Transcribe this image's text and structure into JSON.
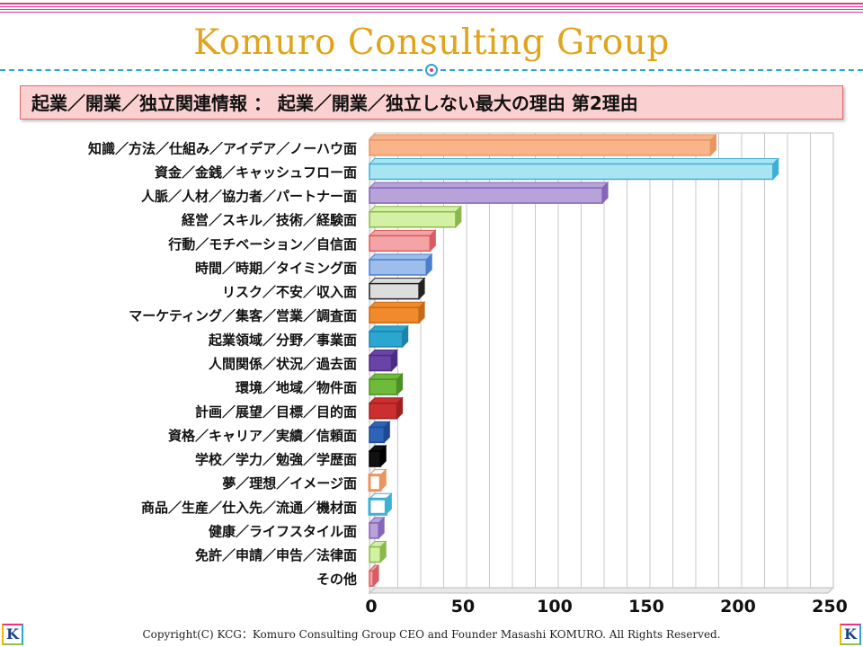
{
  "brand_title": "Komuro Consulting Group",
  "heading": "起業／開業／独立関連情報 ： 起業／開業／独立しない最大の理由 第2理由",
  "footer": {
    "copyright": "Copyright(C) KCG：Komuro Consulting Group CEO and Founder Masashi KOMURO. All Rights Reserved.",
    "logo_left": "K",
    "logo_right": "K"
  },
  "chart_data": {
    "type": "bar",
    "orientation": "horizontal",
    "title": "",
    "xlabel": "",
    "ylabel": "",
    "xlim": [
      0,
      250
    ],
    "x_ticks": [
      "0",
      "50",
      "100",
      "150",
      "200",
      "250"
    ],
    "grid": true,
    "categories": [
      "知識／方法／仕組み／アイデア／ノーハウ面",
      "資金／金銭／キャッシュフロー面",
      "人脈／人材／協力者／パートナー面",
      "経営／スキル／技術／経験面",
      "行動／モチベーション／自信面",
      "時間／時期／タイミング面",
      "リスク／不安／収入面",
      "マーケティング／集客／営業／調査面",
      "起業領域／分野／事業面",
      "人間関係／状況／過去面",
      "環境／地域／物件面",
      "計画／展望／目標／目的面",
      "資格／キャリア／実績／信頼面",
      "学校／学力／勉強／学歴面",
      "夢／理想／イメージ面",
      "商品／生産／仕入先／流通／機材面",
      "健康／ライフスタイル面",
      "免許／申請／申告／法律面",
      "その他"
    ],
    "values": [
      186,
      220,
      127,
      47,
      33,
      31,
      27,
      27,
      18,
      12,
      15,
      15,
      8,
      6,
      6,
      9,
      5,
      6,
      2
    ],
    "colors": [
      "#f9b48a",
      "#a9e4f3",
      "#b7a3d9",
      "#d4f0a4",
      "#f4a3a6",
      "#9dbdea",
      "#dddddd",
      "#f08a2a",
      "#2ba6d0",
      "#6a43a6",
      "#6fba3a",
      "#cc2f2f",
      "#2d64b8",
      "#111111",
      "#f9b48a",
      "#a9e4f3",
      "#b7a3d9",
      "#d4f0a4",
      "#f4a3a6"
    ],
    "stroke_colors": [
      "#e89560",
      "#3fb0d5",
      "#8664b8",
      "#8ab84a",
      "#d85c62",
      "#4a7fcf",
      "#222222",
      "#c76a18",
      "#1d83a8",
      "#4b2d80",
      "#4c8f26",
      "#9e2020",
      "#1d4b91",
      "#000000",
      "#e89560",
      "#3fb0d5",
      "#8664b8",
      "#8ab84a",
      "#d85c62"
    ],
    "fill_style": [
      "solid",
      "solid",
      "solid",
      "solid",
      "solid",
      "solid",
      "solid",
      "solid",
      "solid",
      "solid",
      "solid",
      "solid",
      "solid",
      "solid",
      "outline",
      "outline",
      "solid",
      "solid",
      "solid"
    ]
  }
}
